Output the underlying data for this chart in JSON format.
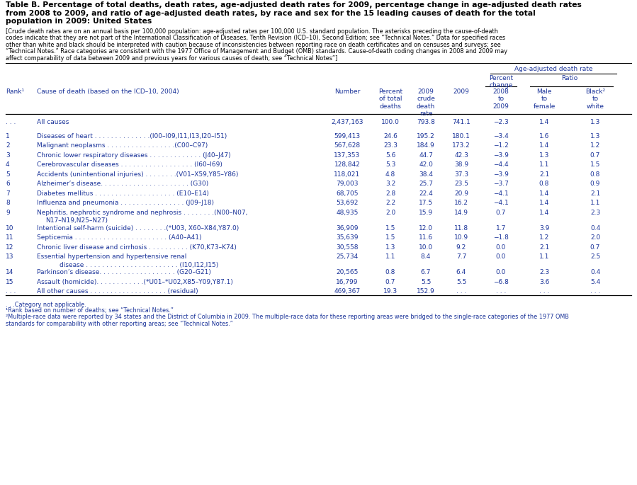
{
  "title_line1": "Table B. Percentage of total deaths, death rates, age-adjusted death rates for 2009, percentage change in age-adjusted death rates",
  "title_line2": "from 2008 to 2009, and ratio of age-adjusted death rates, by race and sex for the 15 leading causes of death for the total",
  "title_line3": "population in 2009: United States",
  "note_lines": [
    "[Crude death rates are on an annual basis per 100,000 population: age-adjusted rates per 100,000 U.S. standard population. The asterisks preceding the cause-of-death",
    "codes indicate that they are not part of the International Classification of Diseases, Tenth Revision (ICD–10), Second Edition; see “Technical Notes.” Data for specified races",
    "other than white and black should be interpreted with caution because of inconsistencies between reporting race on death certificates and on censuses and surveys; see",
    "“Technical Notes.” Race categories are consistent with the 1977 Office of Management and Budget (OMB) standards. Cause-of-death coding changes in 2008 and 2009 may",
    "affect comparability of data between 2009 and previous years for various causes of death; see “Technical Notes”]"
  ],
  "rows": [
    {
      "rank": ". . .",
      "cause": "All causes",
      "number": "2,437,163",
      "pct": "100.0",
      "crude": "793.8",
      "adj": "741.1",
      "pct_chg": "−2.3",
      "male_fem": "1.4",
      "blk_wht": "1.3",
      "extra_line": null
    },
    {
      "rank": "1",
      "cause": "Diseases of heart . . . . . . . . . . . . . .(I00–I09,I11,I13,I20–I51)",
      "number": "599,413",
      "pct": "24.6",
      "crude": "195.2",
      "adj": "180.1",
      "pct_chg": "−3.4",
      "male_fem": "1.6",
      "blk_wht": "1.3",
      "extra_line": null
    },
    {
      "rank": "2",
      "cause": "Malignant neoplasms . . . . . . . . . . . . . . . . .(C00–C97)",
      "number": "567,628",
      "pct": "23.3",
      "crude": "184.9",
      "adj": "173.2",
      "pct_chg": "−1.2",
      "male_fem": "1.4",
      "blk_wht": "1.2",
      "extra_line": null
    },
    {
      "rank": "3",
      "cause": "Chronic lower respiratory diseases . . . . . . . . . . . . . (J40–J47)",
      "number": "137,353",
      "pct": "5.6",
      "crude": "44.7",
      "adj": "42.3",
      "pct_chg": "−3.9",
      "male_fem": "1.3",
      "blk_wht": "0.7",
      "extra_line": null
    },
    {
      "rank": "4",
      "cause": "Cerebrovascular diseases . . . . . . . . . . . . . . . . . . (I60–I69)",
      "number": "128,842",
      "pct": "5.3",
      "crude": "42.0",
      "adj": "38.9",
      "pct_chg": "−4.4",
      "male_fem": "1.1",
      "blk_wht": "1.5",
      "extra_line": null
    },
    {
      "rank": "5",
      "cause": "Accidents (unintentional injuries) . . . . . . . .(V01–X59,Y85–Y86)",
      "number": "118,021",
      "pct": "4.8",
      "crude": "38.4",
      "adj": "37.3",
      "pct_chg": "−3.9",
      "male_fem": "2.1",
      "blk_wht": "0.8",
      "extra_line": null
    },
    {
      "rank": "6",
      "cause": "Alzheimer’s disease. . . . . . . . . . . . . . . . . . . . . . (G30)",
      "number": "79,003",
      "pct": "3.2",
      "crude": "25.7",
      "adj": "23.5",
      "pct_chg": "−3.7",
      "male_fem": "0.8",
      "blk_wht": "0.9",
      "extra_line": null
    },
    {
      "rank": "7",
      "cause": "Diabetes mellitus . . . . . . . . . . . . . . . . . . . . (E10–E14)",
      "number": "68,705",
      "pct": "2.8",
      "crude": "22.4",
      "adj": "20.9",
      "pct_chg": "−4.1",
      "male_fem": "1.4",
      "blk_wht": "2.1",
      "extra_line": null
    },
    {
      "rank": "8",
      "cause": "Influenza and pneumonia . . . . . . . . . . . . . . . . (J09–J18)",
      "number": "53,692",
      "pct": "2.2",
      "crude": "17.5",
      "adj": "16.2",
      "pct_chg": "−4.1",
      "male_fem": "1.4",
      "blk_wht": "1.1",
      "extra_line": null
    },
    {
      "rank": "9",
      "cause": "Nephritis, nephrotic syndrome and nephrosis . . . . . . . .(N00–N07,",
      "number": "48,935",
      "pct": "2.0",
      "crude": "15.9",
      "adj": "14.9",
      "pct_chg": "0.7",
      "male_fem": "1.4",
      "blk_wht": "2.3",
      "extra_line": "N17–N19,N25–N27)"
    },
    {
      "rank": "10",
      "cause": "Intentional self-harm (suicide) . . . . . . . .(*U03, X60–X84,Y87.0)",
      "number": "36,909",
      "pct": "1.5",
      "crude": "12.0",
      "adj": "11.8",
      "pct_chg": "1.7",
      "male_fem": "3.9",
      "blk_wht": "0.4",
      "extra_line": null
    },
    {
      "rank": "11",
      "cause": "Septicemia . . . . . . . . . . . . . . . . . . . . . . . (A40–A41)",
      "number": "35,639",
      "pct": "1.5",
      "crude": "11.6",
      "adj": "10.9",
      "pct_chg": "−1.8",
      "male_fem": "1.2",
      "blk_wht": "2.0",
      "extra_line": null
    },
    {
      "rank": "12",
      "cause": "Chronic liver disease and cirrhosis . . . . . . . . . . (K70,K73–K74)",
      "number": "30,558",
      "pct": "1.3",
      "crude": "10.0",
      "adj": "9.2",
      "pct_chg": "0.0",
      "male_fem": "2.1",
      "blk_wht": "0.7",
      "extra_line": null
    },
    {
      "rank": "13",
      "cause": "Essential hypertension and hypertensive renal",
      "number": "25,734",
      "pct": "1.1",
      "crude": "8.4",
      "adj": "7.7",
      "pct_chg": "0.0",
      "male_fem": "1.1",
      "blk_wht": "2.5",
      "extra_line": "disease . . . . . . . . . . . . . . . . . . . . . . . (I10,I12,I15)"
    },
    {
      "rank": "14",
      "cause": "Parkinson’s disease. . . . . . . . . . . . . . . . . . . (G20–G21)",
      "number": "20,565",
      "pct": "0.8",
      "crude": "6.7",
      "adj": "6.4",
      "pct_chg": "0.0",
      "male_fem": "2.3",
      "blk_wht": "0.4",
      "extra_line": null
    },
    {
      "rank": "15",
      "cause": "Assault (homicide). . . . . . . . . . . .(*U01–*U02,X85–Y09,Y87.1)",
      "number": "16,799",
      "pct": "0.7",
      "crude": "5.5",
      "adj": "5.5",
      "pct_chg": "−6.8",
      "male_fem": "3.6",
      "blk_wht": "5.4",
      "extra_line": null
    },
    {
      "rank": ". . .",
      "cause": "All other causes . . . . . . . . . . . . . . . . . . . (residual)",
      "number": "469,367",
      "pct": "19.3",
      "crude": "152.9",
      "adj": ". . .",
      "pct_chg": ". . .",
      "male_fem": ". . .",
      "blk_wht": ". . .",
      "extra_line": null
    }
  ],
  "footnote_lines": [
    ". . .Category not applicable.",
    "¹Rank based on number of deaths; see “Technical Notes.”",
    "²Multiple-race data were reported by 34 states and the District of Columbia in 2009. The multiple-race data for these reporting areas were bridged to the single-race categories of the 1977 OMB",
    "standards for comparability with other reporting areas; see “Technical Notes.”"
  ],
  "col_x": {
    "rank": 8,
    "cause": 52,
    "number": 490,
    "pct": 551,
    "crude": 601,
    "adj": 651,
    "pct_chg": 707,
    "male_fem": 768,
    "blk_wht": 840
  },
  "bg_color": "#ffffff",
  "black": "#000000",
  "blue": "#1a3399"
}
